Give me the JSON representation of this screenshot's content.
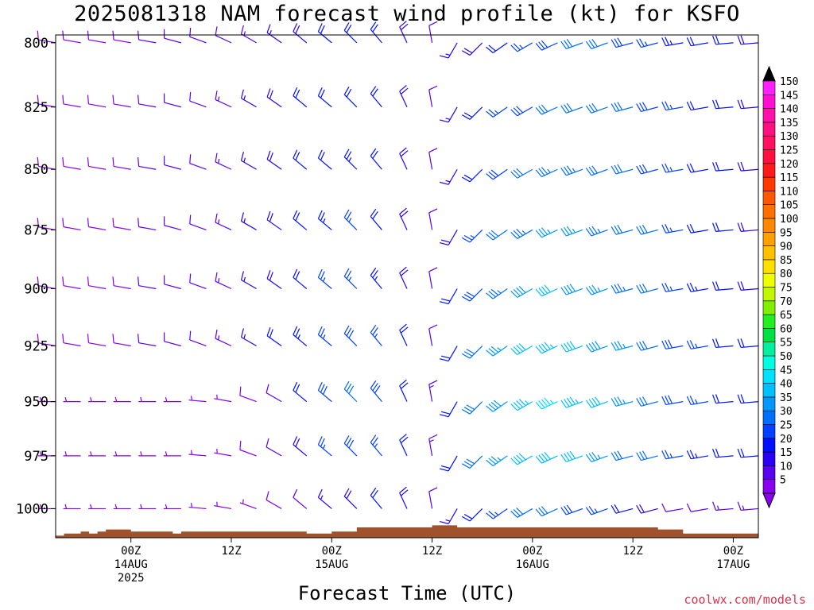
{
  "title": "2025081318 NAM forecast wind profile (kt) for KSFO",
  "source_label": "coolwx.com/models",
  "chart_data": {
    "type": "wind-barb-profile",
    "title": "2025081318 NAM forecast wind profile (kt) for KSFO",
    "xlabel": "Forecast Time (UTC)",
    "ylabel": "",
    "units": "kt",
    "y_axis": {
      "ticks": [
        800,
        825,
        850,
        875,
        900,
        925,
        950,
        975,
        1000
      ],
      "range": [
        797,
        1014
      ],
      "scale": "log-pressure"
    },
    "x_axis": {
      "range_hours": [
        -9,
        75
      ],
      "ticks": [
        {
          "hour": 0,
          "labels": [
            "00Z",
            "14AUG",
            "2025"
          ]
        },
        {
          "hour": 12,
          "labels": [
            "12Z"
          ]
        },
        {
          "hour": 24,
          "labels": [
            "00Z",
            "15AUG"
          ]
        },
        {
          "hour": 36,
          "labels": [
            "12Z"
          ]
        },
        {
          "hour": 48,
          "labels": [
            "00Z",
            "16AUG"
          ]
        },
        {
          "hour": 60,
          "labels": [
            "12Z"
          ]
        },
        {
          "hour": 72,
          "labels": [
            "00Z",
            "17AUG"
          ]
        }
      ]
    },
    "colorbar": {
      "levels": [
        5,
        10,
        15,
        20,
        25,
        30,
        35,
        40,
        45,
        50,
        55,
        60,
        65,
        70,
        75,
        80,
        85,
        90,
        95,
        100,
        105,
        110,
        115,
        120,
        125,
        130,
        135,
        140,
        145,
        150
      ],
      "colors": [
        "#8800ee",
        "#5a00f0",
        "#2a00f5",
        "#0010ff",
        "#0040ff",
        "#0070ff",
        "#0098ff",
        "#00c0ff",
        "#00e0ff",
        "#00ffe0",
        "#00f0a0",
        "#00e040",
        "#20f020",
        "#80f000",
        "#c0f800",
        "#f0ff00",
        "#ffe000",
        "#ffc000",
        "#ffa000",
        "#ff8800",
        "#ff7000",
        "#ff5800",
        "#ff3800",
        "#ff1a1a",
        "#ff1040",
        "#ff1060",
        "#ff1080",
        "#ff10a8",
        "#ff10d0",
        "#ff20ff"
      ]
    },
    "winds": {
      "times_hours": [
        -9,
        -6,
        -3,
        0,
        3,
        6,
        9,
        12,
        15,
        18,
        21,
        24,
        27,
        30,
        33,
        36,
        39,
        42,
        45,
        48,
        51,
        54,
        57,
        60,
        63,
        66,
        69,
        72,
        75
      ],
      "levels_hpa": [
        800,
        825,
        850,
        875,
        900,
        925,
        950,
        975,
        1000
      ],
      "speed_kt": [
        [
          8,
          8,
          9,
          9,
          10,
          11,
          11,
          12,
          14,
          16,
          18,
          20,
          20,
          20,
          18,
          12,
          15,
          18,
          22,
          25,
          28,
          30,
          30,
          28,
          26,
          24,
          22,
          20,
          18
        ],
        [
          8,
          8,
          9,
          9,
          10,
          11,
          12,
          13,
          15,
          18,
          20,
          22,
          22,
          22,
          18,
          12,
          15,
          20,
          25,
          28,
          30,
          32,
          32,
          30,
          28,
          25,
          22,
          20,
          18
        ],
        [
          8,
          8,
          9,
          9,
          10,
          11,
          12,
          14,
          16,
          18,
          20,
          22,
          24,
          22,
          18,
          12,
          16,
          22,
          28,
          32,
          34,
          34,
          32,
          30,
          28,
          26,
          22,
          20,
          18
        ],
        [
          8,
          8,
          9,
          9,
          10,
          11,
          12,
          14,
          16,
          18,
          22,
          24,
          25,
          22,
          18,
          12,
          18,
          25,
          30,
          34,
          36,
          36,
          34,
          32,
          30,
          26,
          22,
          20,
          18
        ],
        [
          8,
          8,
          9,
          9,
          10,
          11,
          12,
          14,
          16,
          18,
          22,
          25,
          26,
          24,
          18,
          12,
          20,
          28,
          34,
          38,
          40,
          38,
          36,
          34,
          30,
          26,
          24,
          20,
          18
        ],
        [
          8,
          8,
          9,
          9,
          10,
          11,
          12,
          14,
          16,
          20,
          24,
          26,
          28,
          26,
          20,
          12,
          22,
          30,
          36,
          42,
          44,
          42,
          38,
          35,
          32,
          28,
          25,
          22,
          20
        ],
        [
          6,
          6,
          6,
          6,
          6,
          6,
          6,
          6,
          8,
          12,
          22,
          28,
          30,
          28,
          22,
          14,
          22,
          32,
          38,
          44,
          46,
          44,
          40,
          36,
          32,
          28,
          25,
          22,
          20
        ],
        [
          6,
          6,
          6,
          6,
          6,
          6,
          6,
          6,
          8,
          10,
          18,
          26,
          28,
          26,
          22,
          14,
          20,
          30,
          36,
          40,
          42,
          40,
          36,
          32,
          30,
          26,
          24,
          22,
          20
        ],
        [
          5,
          5,
          5,
          5,
          5,
          5,
          5,
          5,
          6,
          8,
          12,
          16,
          18,
          20,
          18,
          12,
          16,
          22,
          26,
          30,
          30,
          28,
          26,
          22,
          18,
          10,
          12,
          14,
          14
        ]
      ],
      "direction_deg": [
        [
          280,
          280,
          280,
          280,
          280,
          285,
          290,
          295,
          300,
          305,
          310,
          310,
          315,
          320,
          335,
          350,
          210,
          225,
          235,
          240,
          245,
          250,
          250,
          255,
          255,
          260,
          260,
          265,
          265
        ],
        [
          280,
          280,
          280,
          280,
          280,
          285,
          290,
          295,
          300,
          305,
          310,
          310,
          315,
          320,
          335,
          350,
          210,
          225,
          235,
          240,
          245,
          250,
          250,
          255,
          255,
          260,
          260,
          265,
          265
        ],
        [
          280,
          280,
          280,
          280,
          280,
          285,
          290,
          295,
          300,
          305,
          310,
          310,
          315,
          320,
          335,
          350,
          210,
          225,
          235,
          240,
          245,
          250,
          250,
          255,
          255,
          260,
          260,
          265,
          265
        ],
        [
          280,
          280,
          280,
          280,
          280,
          285,
          290,
          295,
          300,
          305,
          310,
          310,
          315,
          320,
          335,
          350,
          210,
          225,
          235,
          240,
          245,
          250,
          250,
          255,
          255,
          260,
          260,
          265,
          265
        ],
        [
          280,
          280,
          280,
          280,
          280,
          285,
          290,
          295,
          300,
          305,
          310,
          310,
          315,
          320,
          335,
          350,
          210,
          225,
          235,
          240,
          245,
          250,
          250,
          255,
          255,
          260,
          260,
          265,
          265
        ],
        [
          280,
          280,
          280,
          280,
          280,
          285,
          290,
          295,
          300,
          305,
          310,
          310,
          315,
          320,
          335,
          350,
          210,
          225,
          235,
          240,
          245,
          250,
          250,
          255,
          255,
          260,
          260,
          265,
          265
        ],
        [
          270,
          270,
          270,
          270,
          270,
          270,
          275,
          280,
          290,
          300,
          310,
          310,
          315,
          320,
          335,
          350,
          210,
          225,
          235,
          240,
          245,
          250,
          250,
          255,
          255,
          260,
          260,
          265,
          265
        ],
        [
          270,
          270,
          270,
          270,
          270,
          270,
          275,
          280,
          290,
          300,
          310,
          310,
          315,
          320,
          335,
          350,
          210,
          225,
          235,
          240,
          245,
          250,
          250,
          255,
          255,
          260,
          260,
          265,
          265
        ],
        [
          270,
          270,
          270,
          270,
          270,
          270,
          275,
          280,
          290,
          300,
          310,
          310,
          315,
          320,
          335,
          350,
          210,
          225,
          235,
          240,
          245,
          250,
          250,
          255,
          255,
          260,
          260,
          265,
          265
        ]
      ]
    },
    "terrain": {
      "color": "#a0522d",
      "times_hours": [
        -9,
        -8,
        -6,
        -5,
        -4,
        -3,
        0,
        3,
        5,
        6,
        9,
        12,
        15,
        18,
        21,
        24,
        27,
        30,
        33,
        36,
        39,
        42,
        45,
        48,
        51,
        54,
        57,
        60,
        63,
        66,
        69,
        72,
        75
      ],
      "surface_hpa": [
        1013,
        1012,
        1011,
        1012,
        1011,
        1010,
        1011,
        1011,
        1012,
        1011,
        1011,
        1011,
        1011,
        1011,
        1012,
        1011,
        1009,
        1009,
        1009,
        1008,
        1009,
        1009,
        1009,
        1009,
        1009,
        1009,
        1009,
        1009,
        1010,
        1012,
        1012,
        1012,
        1013
      ]
    }
  }
}
